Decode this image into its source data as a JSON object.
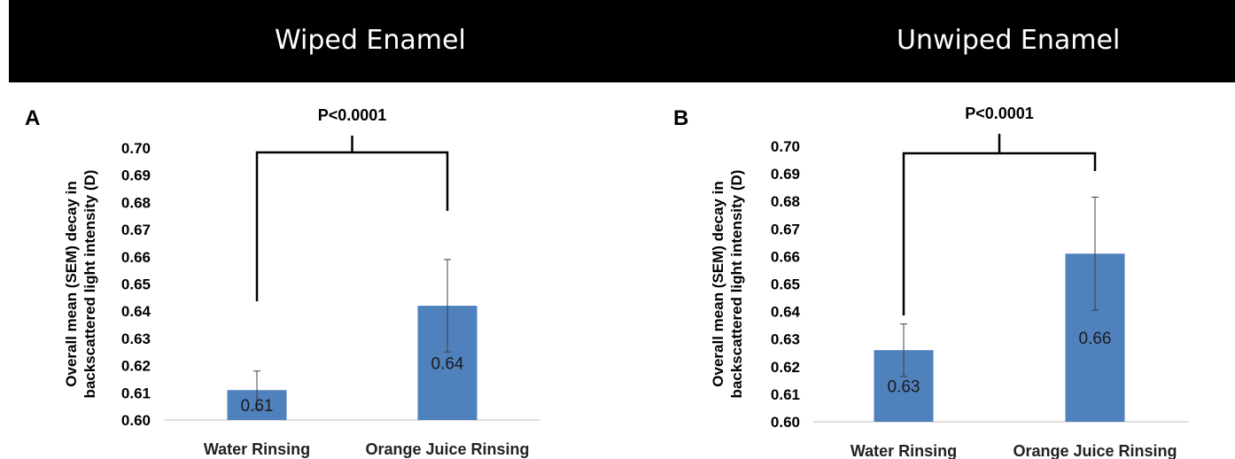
{
  "header": {
    "left_title": "Wiped Enamel",
    "right_title": "Unwiped Enamel",
    "background": "#000000",
    "text_color": "#ffffff"
  },
  "chart_data": [
    {
      "type": "bar",
      "panel_label": "A",
      "ylabel": "Overall mean (SEM) decay in backscattered light intensity (D)",
      "ylim": [
        0.6,
        0.7
      ],
      "yticks": [
        "0.60",
        "0.61",
        "0.62",
        "0.63",
        "0.64",
        "0.65",
        "0.66",
        "0.67",
        "0.68",
        "0.69",
        "0.70"
      ],
      "categories": [
        "Water Rinsing",
        "Orange Juice Rinsing"
      ],
      "values": [
        0.611,
        0.642
      ],
      "errors": [
        0.007,
        0.017
      ],
      "data_labels": [
        "0.61",
        "0.64"
      ],
      "significance": "P<0.0001",
      "bar_color": "#4f81bd",
      "grid": false
    },
    {
      "type": "bar",
      "panel_label": "B",
      "ylabel": "Overall mean (SEM) decay in backscattered light intensity (D)",
      "ylim": [
        0.6,
        0.7
      ],
      "yticks": [
        "0.60",
        "0.61",
        "0.62",
        "0.63",
        "0.64",
        "0.65",
        "0.66",
        "0.67",
        "0.68",
        "0.69",
        "0.70"
      ],
      "categories": [
        "Water Rinsing",
        "Orange Juice Rinsing"
      ],
      "values": [
        0.626,
        0.661
      ],
      "errors": [
        0.0095,
        0.0205
      ],
      "data_labels": [
        "0.63",
        "0.66"
      ],
      "significance": "P<0.0001",
      "bar_color": "#4f81bd",
      "grid": false
    }
  ]
}
